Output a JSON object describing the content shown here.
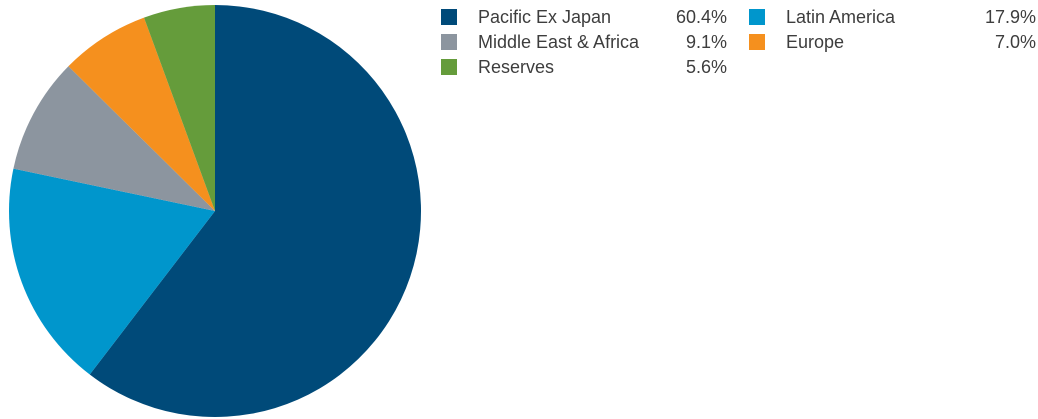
{
  "chart_data": {
    "type": "pie",
    "start_angle_deg": 0,
    "direction": "clockwise",
    "slices": [
      {
        "label": "Pacific Ex Japan",
        "value": 60.4,
        "display": "60.4%",
        "color": "#004a79"
      },
      {
        "label": "Latin America",
        "value": 17.9,
        "display": "17.9%",
        "color": "#0096cc"
      },
      {
        "label": "Middle East & Africa",
        "value": 9.1,
        "display": "9.1%",
        "color": "#8c959f"
      },
      {
        "label": "Europe",
        "value": 7.0,
        "display": "7.0%",
        "color": "#f5901e"
      },
      {
        "label": "Reserves",
        "value": 5.6,
        "display": "5.6%",
        "color": "#659c3b"
      }
    ],
    "legend_order": [
      0,
      2,
      4,
      1,
      3
    ],
    "legend_placement": "top-right"
  }
}
